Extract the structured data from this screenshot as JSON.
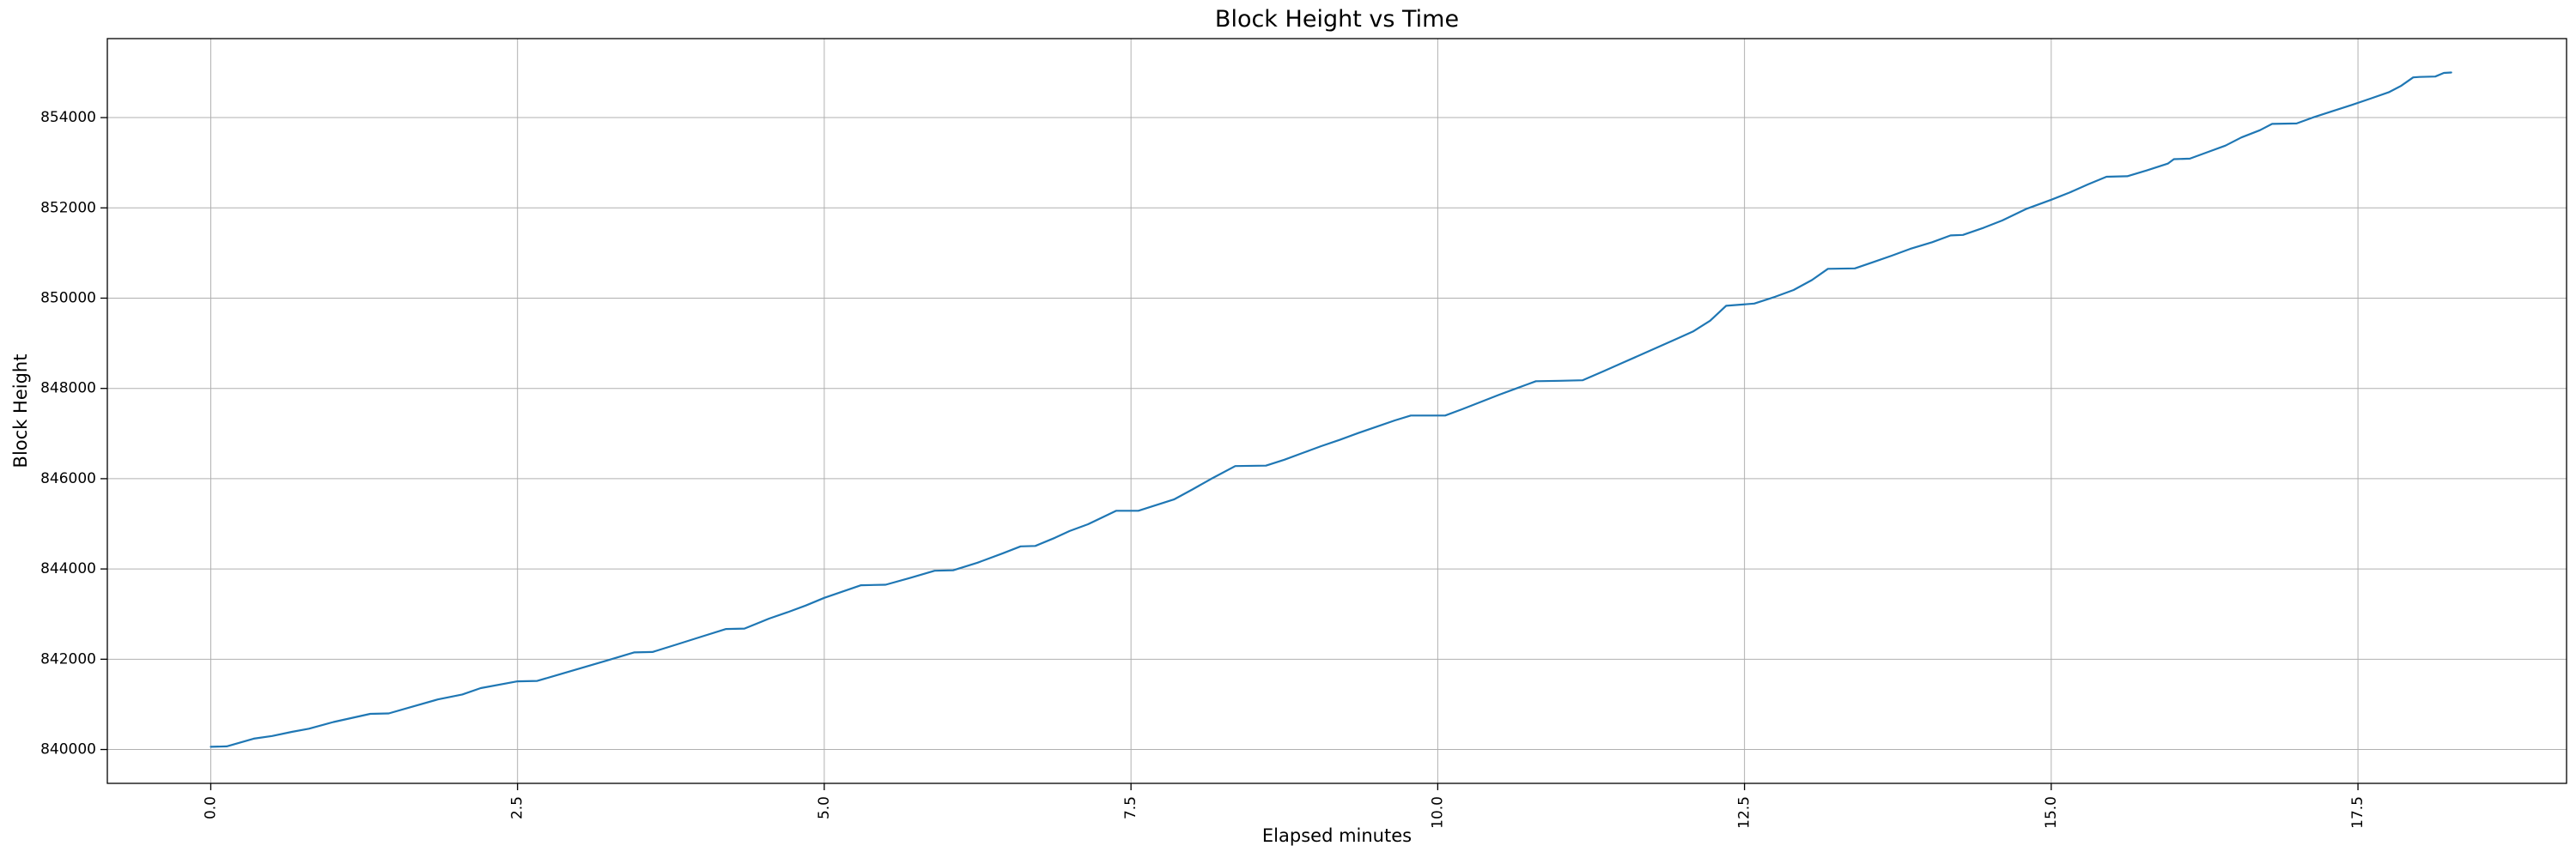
{
  "chart_data": {
    "type": "line",
    "title": "Block Height vs Time",
    "xlabel": "Elapsed minutes",
    "ylabel": "Block Height",
    "grid": true,
    "legend": null,
    "line_color": "#1f77b4",
    "grid_color": "#b0b0b0",
    "spine_color": "#000000",
    "background_color": "#ffffff",
    "xlim": [
      -0.843,
      19.2
    ],
    "ylim": [
      839250,
      855750
    ],
    "x_ticks": [
      {
        "value": 0.0,
        "label": "0.0"
      },
      {
        "value": 2.5,
        "label": "2.5"
      },
      {
        "value": 5.0,
        "label": "5.0"
      },
      {
        "value": 7.5,
        "label": "7.5"
      },
      {
        "value": 10.0,
        "label": "10.0"
      },
      {
        "value": 12.5,
        "label": "12.5"
      },
      {
        "value": 15.0,
        "label": "15.0"
      },
      {
        "value": 17.5,
        "label": "17.5"
      }
    ],
    "y_ticks": [
      {
        "value": 840000,
        "label": "840000"
      },
      {
        "value": 842000,
        "label": "842000"
      },
      {
        "value": 844000,
        "label": "844000"
      },
      {
        "value": 846000,
        "label": "846000"
      },
      {
        "value": 848000,
        "label": "848000"
      },
      {
        "value": 850000,
        "label": "850000"
      },
      {
        "value": 852000,
        "label": "852000"
      },
      {
        "value": 854000,
        "label": "854000"
      }
    ],
    "series": [
      {
        "name": "block_height",
        "x": [
          0.0,
          0.13,
          0.35,
          0.5,
          0.66,
          0.8,
          1.0,
          1.3,
          1.45,
          1.62,
          1.85,
          2.05,
          2.2,
          2.5,
          2.66,
          2.85,
          3.05,
          3.25,
          3.45,
          3.6,
          3.8,
          4.0,
          4.2,
          4.35,
          4.55,
          4.7,
          4.85,
          5.0,
          5.3,
          5.5,
          5.7,
          5.9,
          6.05,
          6.25,
          6.45,
          6.6,
          6.72,
          6.88,
          7.0,
          7.15,
          7.38,
          7.56,
          7.85,
          8.0,
          8.15,
          8.35,
          8.6,
          8.75,
          8.9,
          9.05,
          9.2,
          9.35,
          9.5,
          9.65,
          9.78,
          10.06,
          10.2,
          10.35,
          10.5,
          10.65,
          10.8,
          11.0,
          11.18,
          11.35,
          11.5,
          11.65,
          11.8,
          11.95,
          12.08,
          12.22,
          12.35,
          12.58,
          12.75,
          12.9,
          13.05,
          13.18,
          13.4,
          13.55,
          13.7,
          13.85,
          14.03,
          14.18,
          14.28,
          14.45,
          14.6,
          14.8,
          15.0,
          15.15,
          15.3,
          15.45,
          15.62,
          15.78,
          15.95,
          16.0,
          16.13,
          16.28,
          16.42,
          16.55,
          16.7,
          16.8,
          17.0,
          17.13,
          17.3,
          17.45,
          17.6,
          17.75,
          17.85,
          17.95,
          18.0,
          18.13,
          18.2,
          18.26
        ],
        "y": [
          840060,
          840070,
          840240,
          840300,
          840390,
          840460,
          840610,
          840790,
          840800,
          840930,
          841110,
          841220,
          841360,
          841510,
          841520,
          841670,
          841830,
          841990,
          842150,
          842160,
          842330,
          842500,
          842670,
          842680,
          842900,
          843040,
          843190,
          843360,
          843640,
          843650,
          843800,
          843960,
          843970,
          844140,
          844340,
          844500,
          844510,
          844690,
          844840,
          844990,
          845290,
          845290,
          845540,
          845760,
          845990,
          846280,
          846290,
          846420,
          846570,
          846720,
          846860,
          847010,
          847150,
          847290,
          847400,
          847400,
          847540,
          847700,
          847860,
          848010,
          848160,
          848170,
          848180,
          848380,
          848560,
          848740,
          848920,
          849100,
          849260,
          849500,
          849830,
          849880,
          850030,
          850180,
          850400,
          850650,
          850660,
          850800,
          850940,
          851090,
          851240,
          851390,
          851400,
          851560,
          851720,
          851980,
          852180,
          852340,
          852520,
          852690,
          852700,
          852830,
          852980,
          853080,
          853090,
          853240,
          853380,
          853560,
          853720,
          853860,
          853870,
          854000,
          854150,
          854280,
          854420,
          854560,
          854700,
          854890,
          854900,
          854910,
          854990,
          855000
        ]
      }
    ]
  }
}
